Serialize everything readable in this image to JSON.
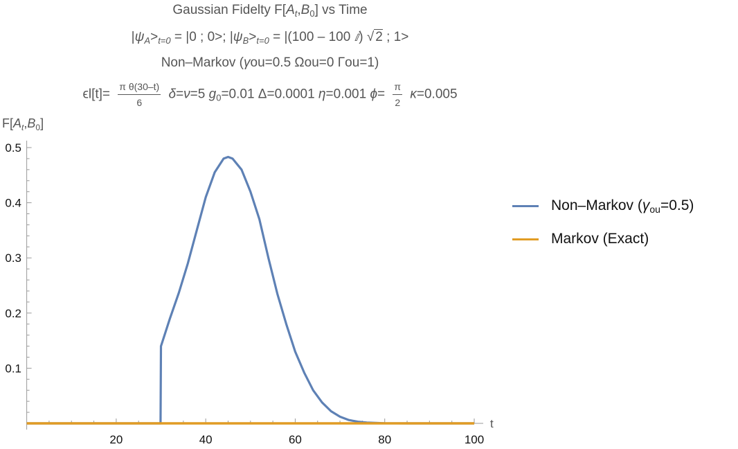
{
  "title_lines": [
    [
      {
        "t": "Gaussian Fidelty F["
      },
      {
        "t": "A",
        "s": "i"
      },
      {
        "t": "t",
        "s": "subi"
      },
      {
        "t": ","
      },
      {
        "t": "B",
        "s": "i"
      },
      {
        "t": "0",
        "s": "sub"
      },
      {
        "t": "] vs Time"
      }
    ],
    [
      {
        "t": "|"
      },
      {
        "t": "ψ",
        "s": "i"
      },
      {
        "t": "A",
        "s": "subi"
      },
      {
        "t": ">"
      },
      {
        "t": "t=0",
        "s": "subi"
      },
      {
        "t": " = |0 ; 0>; |"
      },
      {
        "t": "ψ",
        "s": "i"
      },
      {
        "t": "B",
        "s": "subi"
      },
      {
        "t": ">"
      },
      {
        "t": "t=0",
        "s": "subi"
      },
      {
        "t": " = |(100 – 100 "
      },
      {
        "t": "ⅈ",
        "s": "i"
      },
      {
        "t": ") √"
      },
      {
        "t": "2",
        "s": "sqrt"
      },
      {
        "t": " ; 1>"
      }
    ],
    [
      {
        "t": "Non–Markov ("
      },
      {
        "t": "γ",
        "s": "i"
      },
      {
        "t": "ou=0.5  Ωou=0 Γou=1)"
      }
    ],
    [
      {
        "t": "ϵl[t]= "
      },
      {
        "s": "frac",
        "num": "π θ(30–t)",
        "den": "6"
      },
      {
        "t": " δ",
        "s": "i"
      },
      {
        "t": "="
      },
      {
        "t": "ν",
        "s": "i"
      },
      {
        "t": "=5 "
      },
      {
        "t": "g",
        "s": "i"
      },
      {
        "t": "0",
        "s": "sub"
      },
      {
        "t": "=0.01 Δ=0.0001 "
      },
      {
        "t": "η",
        "s": "i"
      },
      {
        "t": "=0.001 "
      },
      {
        "t": "ϕ",
        "s": "i"
      },
      {
        "t": "= "
      },
      {
        "s": "frac",
        "num": "π",
        "den": "2"
      },
      {
        "t": " κ",
        "s": "i"
      },
      {
        "t": "=0.005"
      }
    ]
  ],
  "ylabel": {
    "main": "F[",
    "a": "A",
    "a_sub": "t",
    "mid": ",",
    "b": "B",
    "b_sub": "0",
    "end": "]"
  },
  "chart_data": {
    "type": "line",
    "title": "Gaussian Fidelty F[A_t,B_0] vs Time",
    "xlabel": "t",
    "ylabel": "F[A_t,B_0]",
    "xlim": [
      0,
      100
    ],
    "ylim": [
      0,
      0.5
    ],
    "xticks": [
      20,
      40,
      60,
      80,
      100
    ],
    "xtick_labels": [
      "20",
      "40",
      "60",
      "80",
      "100"
    ],
    "yticks": [
      0.1,
      0.2,
      0.3,
      0.4,
      0.5
    ],
    "ytick_labels": [
      "0.1",
      "0.2",
      "0.3",
      "0.4",
      "0.5"
    ],
    "legend_position": "right",
    "series": [
      {
        "name": "Non–Markov (γou=0.5)",
        "legend_main": "Non–Markov (",
        "legend_gamma": "γ",
        "legend_sub": "ou",
        "legend_end": "=0.5)",
        "color": "#5E81B5",
        "x": [
          0,
          29.9,
          30,
          30.2,
          32,
          34,
          36,
          38,
          40,
          42,
          44,
          45,
          46,
          48,
          50,
          52,
          54,
          56,
          58,
          60,
          62,
          64,
          66,
          68,
          70,
          72,
          74,
          76,
          78,
          80,
          85,
          90,
          100
        ],
        "y": [
          0,
          0,
          0.14,
          0.145,
          0.19,
          0.237,
          0.29,
          0.35,
          0.41,
          0.455,
          0.48,
          0.483,
          0.48,
          0.46,
          0.42,
          0.37,
          0.3,
          0.235,
          0.18,
          0.13,
          0.092,
          0.06,
          0.038,
          0.022,
          0.012,
          0.006,
          0.003,
          0.0015,
          0.0007,
          0.0003,
          0,
          0,
          0
        ]
      },
      {
        "name": "Markov (Exact)",
        "color": "#E19C24",
        "x": [
          0,
          100
        ],
        "y": [
          0,
          0
        ]
      }
    ]
  }
}
